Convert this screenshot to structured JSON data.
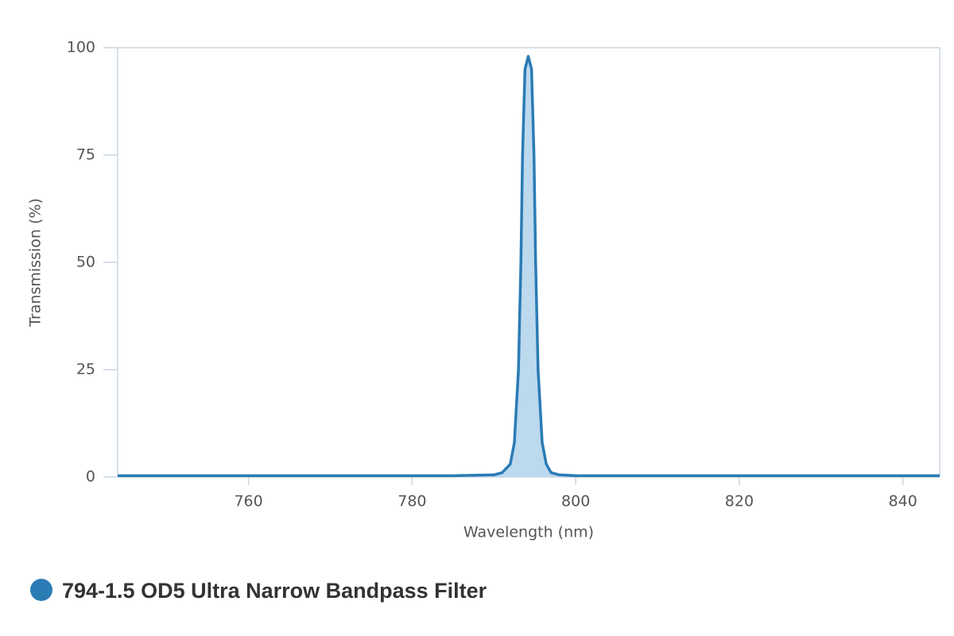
{
  "chart_data": {
    "type": "line",
    "xlabel": "Wavelength (nm)",
    "ylabel": "Transmission (%)",
    "xlim": [
      744,
      844.5
    ],
    "ylim": [
      0,
      100
    ],
    "xticks": [
      760,
      780,
      800,
      820,
      840
    ],
    "yticks": [
      0,
      25,
      50,
      75,
      100
    ],
    "fill": true,
    "legend": "bottom-left",
    "series": [
      {
        "name": "794-1.5 OD5 Ultra Narrow Bandpass Filter",
        "color": "#2b7bb5",
        "fill_color": "#bcd9ee",
        "x": [
          744,
          785,
          790,
          791,
          792,
          792.5,
          793,
          793.3,
          793.5,
          793.8,
          794.2,
          794.6,
          794.9,
          795.1,
          795.4,
          795.9,
          796.4,
          797,
          798,
          800,
          844.5
        ],
        "values": [
          0.3,
          0.3,
          0.5,
          1,
          3,
          8,
          25,
          50,
          75,
          95,
          98,
          95,
          75,
          50,
          25,
          8,
          3,
          1,
          0.5,
          0.3,
          0.3
        ]
      }
    ]
  }
}
